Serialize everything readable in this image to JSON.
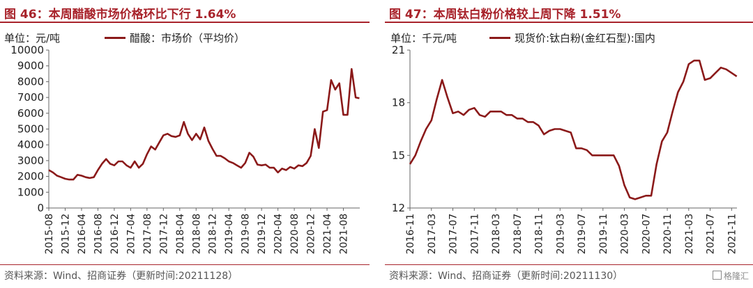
{
  "charts": [
    {
      "figure_title": "图 46：本周醋酸市场价格环比下行 1.64%",
      "unit": "单位：元/吨",
      "source": "资料来源：Wind、招商证券（更新时间:20211128）",
      "colors": {
        "series": "#8b1a1a",
        "title": "#a8232b"
      },
      "chart_data": {
        "type": "line",
        "title": "",
        "xlabel": "",
        "ylabel": "",
        "ylim": [
          0,
          10000
        ],
        "yticks": [
          0,
          1000,
          2000,
          3000,
          4000,
          5000,
          6000,
          7000,
          8000,
          9000,
          10000
        ],
        "ytick_labels": [
          "0",
          "1000",
          "2000",
          "3000",
          "4000",
          "5000",
          "6000",
          "7000",
          "8000",
          "9000",
          "10000"
        ],
        "xlim": [
          "2015-08",
          "2021-12"
        ],
        "xticks": [
          "2015-08",
          "2015-12",
          "2016-04",
          "2016-08",
          "2016-12",
          "2017-04",
          "2017-08",
          "2017-12",
          "2018-04",
          "2018-08",
          "2018-12",
          "2019-04",
          "2019-08",
          "2019-12",
          "2020-04",
          "2020-08",
          "2020-12",
          "2021-04",
          "2021-08"
        ],
        "legend_position": "top",
        "grid": false,
        "series": [
          {
            "name": "醋酸：市场价（平均价）",
            "points": [
              [
                "2015-08",
                2400
              ],
              [
                "2015-09",
                2250
              ],
              [
                "2015-10",
                2050
              ],
              [
                "2015-11",
                1950
              ],
              [
                "2015-12",
                1850
              ],
              [
                "2016-01",
                1800
              ],
              [
                "2016-02",
                1800
              ],
              [
                "2016-03",
                2100
              ],
              [
                "2016-04",
                2050
              ],
              [
                "2016-05",
                1950
              ],
              [
                "2016-06",
                1900
              ],
              [
                "2016-07",
                1950
              ],
              [
                "2016-08",
                2400
              ],
              [
                "2016-09",
                2800
              ],
              [
                "2016-10",
                3100
              ],
              [
                "2016-11",
                2800
              ],
              [
                "2016-12",
                2700
              ],
              [
                "2017-01",
                2950
              ],
              [
                "2017-02",
                2950
              ],
              [
                "2017-03",
                2700
              ],
              [
                "2017-04",
                2550
              ],
              [
                "2017-05",
                2950
              ],
              [
                "2017-06",
                2550
              ],
              [
                "2017-07",
                2800
              ],
              [
                "2017-08",
                3400
              ],
              [
                "2017-09",
                3900
              ],
              [
                "2017-10",
                3700
              ],
              [
                "2017-11",
                4150
              ],
              [
                "2017-12",
                4600
              ],
              [
                "2018-01",
                4700
              ],
              [
                "2018-02",
                4550
              ],
              [
                "2018-03",
                4500
              ],
              [
                "2018-04",
                4600
              ],
              [
                "2018-05",
                5450
              ],
              [
                "2018-06",
                4700
              ],
              [
                "2018-07",
                4300
              ],
              [
                "2018-08",
                4700
              ],
              [
                "2018-09",
                4350
              ],
              [
                "2018-10",
                5100
              ],
              [
                "2018-11",
                4250
              ],
              [
                "2018-12",
                3750
              ],
              [
                "2019-01",
                3300
              ],
              [
                "2019-02",
                3300
              ],
              [
                "2019-03",
                3150
              ],
              [
                "2019-04",
                2950
              ],
              [
                "2019-05",
                2850
              ],
              [
                "2019-06",
                2700
              ],
              [
                "2019-07",
                2550
              ],
              [
                "2019-08",
                2850
              ],
              [
                "2019-09",
                3500
              ],
              [
                "2019-10",
                3250
              ],
              [
                "2019-11",
                2750
              ],
              [
                "2019-12",
                2700
              ],
              [
                "2020-01",
                2750
              ],
              [
                "2020-02",
                2550
              ],
              [
                "2020-03",
                2550
              ],
              [
                "2020-04",
                2250
              ],
              [
                "2020-05",
                2500
              ],
              [
                "2020-06",
                2400
              ],
              [
                "2020-07",
                2600
              ],
              [
                "2020-08",
                2500
              ],
              [
                "2020-09",
                2700
              ],
              [
                "2020-10",
                2650
              ],
              [
                "2020-11",
                2850
              ],
              [
                "2020-12",
                3300
              ],
              [
                "2021-01",
                5000
              ],
              [
                "2021-02",
                3800
              ],
              [
                "2021-03",
                6100
              ],
              [
                "2021-04",
                6200
              ],
              [
                "2021-05",
                8100
              ],
              [
                "2021-06",
                7500
              ],
              [
                "2021-07",
                7900
              ],
              [
                "2021-08",
                5900
              ],
              [
                "2021-09",
                5900
              ],
              [
                "2021-10",
                8800
              ],
              [
                "2021-11",
                7000
              ],
              [
                "2021-11-28",
                6950
              ]
            ]
          }
        ]
      }
    },
    {
      "figure_title": "图 47：本周钛白粉价格较上周下降 1.51%",
      "unit": "单位：千元/吨",
      "source": "资料来源：Wind、招商证券（更新时间:20211130）",
      "watermark": "格隆汇",
      "colors": {
        "series": "#8b1a1a",
        "title": "#a8232b"
      },
      "chart_data": {
        "type": "line",
        "title": "",
        "xlabel": "",
        "ylabel": "",
        "ylim": [
          12,
          21
        ],
        "yticks": [
          12,
          15,
          18,
          21
        ],
        "ytick_labels": [
          "12",
          "15",
          "18",
          "21"
        ],
        "xlim": [
          "2016-11",
          "2021-12"
        ],
        "xticks": [
          "2016-11",
          "2017-03",
          "2017-07",
          "2017-11",
          "2018-03",
          "2018-07",
          "2018-11",
          "2019-03",
          "2019-07",
          "2019-11",
          "2020-03",
          "2020-07",
          "2020-11",
          "2021-03",
          "2021-07",
          "2021-11"
        ],
        "legend_position": "top",
        "grid": false,
        "series": [
          {
            "name": "现货价:钛白粉(金红石型):国内",
            "points": [
              [
                "2016-11",
                14.5
              ],
              [
                "2016-12",
                15.0
              ],
              [
                "2017-01",
                15.8
              ],
              [
                "2017-02",
                16.5
              ],
              [
                "2017-03",
                17.0
              ],
              [
                "2017-04",
                18.2
              ],
              [
                "2017-05",
                19.3
              ],
              [
                "2017-06",
                18.3
              ],
              [
                "2017-07",
                17.4
              ],
              [
                "2017-08",
                17.5
              ],
              [
                "2017-09",
                17.3
              ],
              [
                "2017-10",
                17.6
              ],
              [
                "2017-11",
                17.7
              ],
              [
                "2017-12",
                17.3
              ],
              [
                "2018-01",
                17.2
              ],
              [
                "2018-02",
                17.5
              ],
              [
                "2018-03",
                17.5
              ],
              [
                "2018-04",
                17.5
              ],
              [
                "2018-05",
                17.3
              ],
              [
                "2018-06",
                17.3
              ],
              [
                "2018-07",
                17.1
              ],
              [
                "2018-08",
                17.1
              ],
              [
                "2018-09",
                16.9
              ],
              [
                "2018-10",
                16.9
              ],
              [
                "2018-11",
                16.7
              ],
              [
                "2018-12",
                16.2
              ],
              [
                "2019-01",
                16.4
              ],
              [
                "2019-02",
                16.5
              ],
              [
                "2019-03",
                16.5
              ],
              [
                "2019-04",
                16.4
              ],
              [
                "2019-05",
                16.3
              ],
              [
                "2019-06",
                15.4
              ],
              [
                "2019-07",
                15.4
              ],
              [
                "2019-08",
                15.3
              ],
              [
                "2019-09",
                15.0
              ],
              [
                "2019-10",
                15.0
              ],
              [
                "2019-11",
                15.0
              ],
              [
                "2019-12",
                15.0
              ],
              [
                "2020-01",
                15.0
              ],
              [
                "2020-02",
                14.4
              ],
              [
                "2020-03",
                13.3
              ],
              [
                "2020-04",
                12.6
              ],
              [
                "2020-05",
                12.5
              ],
              [
                "2020-06",
                12.6
              ],
              [
                "2020-07",
                12.7
              ],
              [
                "2020-08",
                12.7
              ],
              [
                "2020-09",
                14.5
              ],
              [
                "2020-10",
                15.8
              ],
              [
                "2020-11",
                16.3
              ],
              [
                "2020-12",
                17.5
              ],
              [
                "2021-01",
                18.6
              ],
              [
                "2021-02",
                19.2
              ],
              [
                "2021-03",
                20.2
              ],
              [
                "2021-04",
                20.4
              ],
              [
                "2021-05",
                20.4
              ],
              [
                "2021-06",
                19.3
              ],
              [
                "2021-07",
                19.4
              ],
              [
                "2021-08",
                19.7
              ],
              [
                "2021-09",
                20.0
              ],
              [
                "2021-10",
                19.9
              ],
              [
                "2021-11",
                19.7
              ],
              [
                "2021-11-30",
                19.5
              ]
            ]
          }
        ]
      }
    }
  ]
}
